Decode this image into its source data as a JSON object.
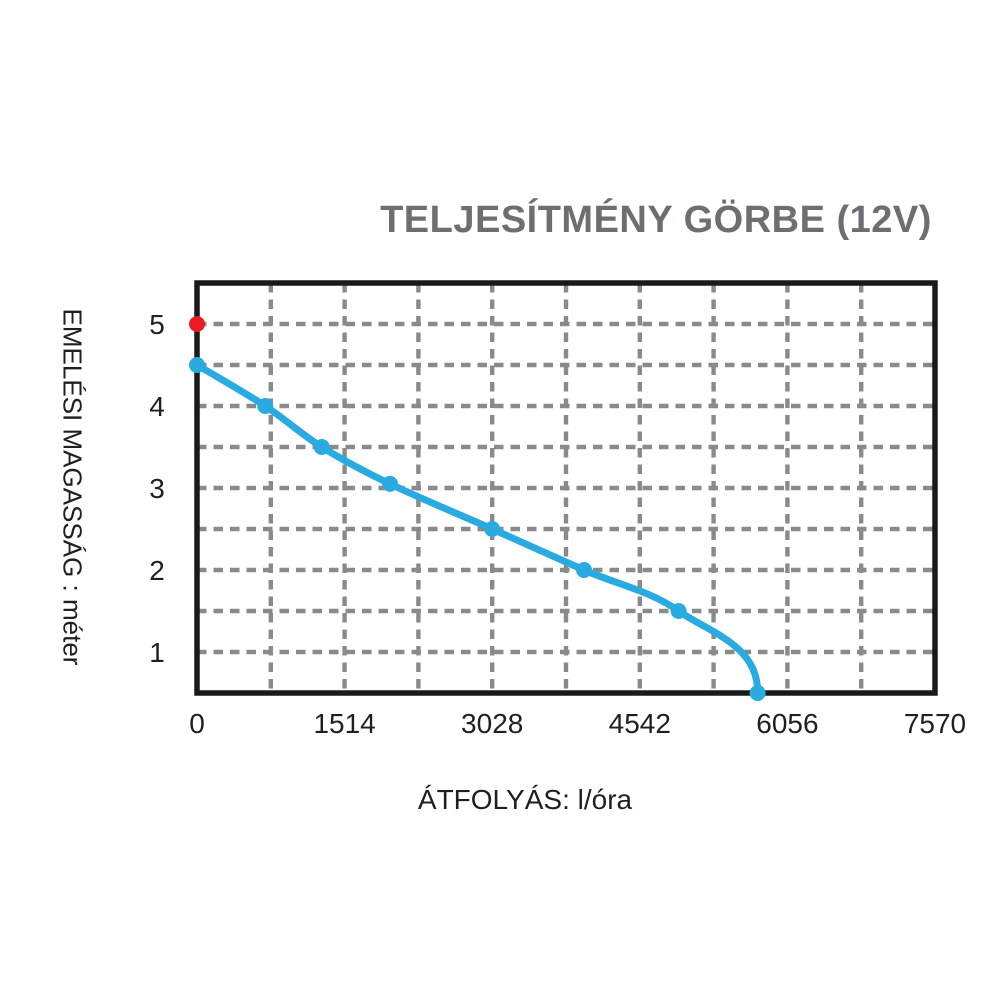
{
  "colors": {
    "background": "#FFFFFF",
    "title_text": "#6D6E71",
    "axis_text": "#1F1F1F",
    "frame": "#1A1A1A",
    "grid": "#8A8A8A",
    "curve": "#29ABE2",
    "max_point": "#ED1C24"
  },
  "chart_data": {
    "type": "line",
    "title": "TELJESÍTMÉNY GÖRBE (12V)",
    "xlabel": "ÁTFOLYÁS: l/óra",
    "ylabel": "EMELÉSI MAGASSÁG : méter",
    "xlim": [
      0,
      7570
    ],
    "ylim": [
      0.5,
      5.5
    ],
    "x_ticks": [
      0,
      1514,
      3028,
      4542,
      6056,
      7570
    ],
    "y_ticks": [
      5,
      4,
      3,
      2,
      1
    ],
    "grid": {
      "style": "dashed",
      "color": "#8A8A8A",
      "x_step": 757,
      "y_step": 0.5
    },
    "series": [
      {
        "name": "teljesítmény görbe (12V)",
        "color": "#29ABE2",
        "marker_radius": 8,
        "line_width": 7,
        "points": [
          [
            0,
            4.5
          ],
          [
            700,
            4.0
          ],
          [
            1280,
            3.5
          ],
          [
            1980,
            3.05
          ],
          [
            3028,
            2.5
          ],
          [
            3970,
            2.0
          ],
          [
            4940,
            1.5
          ],
          [
            5750,
            0.5
          ]
        ]
      }
    ],
    "annotations": [
      {
        "type": "point",
        "x": 0,
        "y": 5.0,
        "color": "#ED1C24",
        "name": "max-head-point"
      }
    ],
    "legend": "none"
  }
}
